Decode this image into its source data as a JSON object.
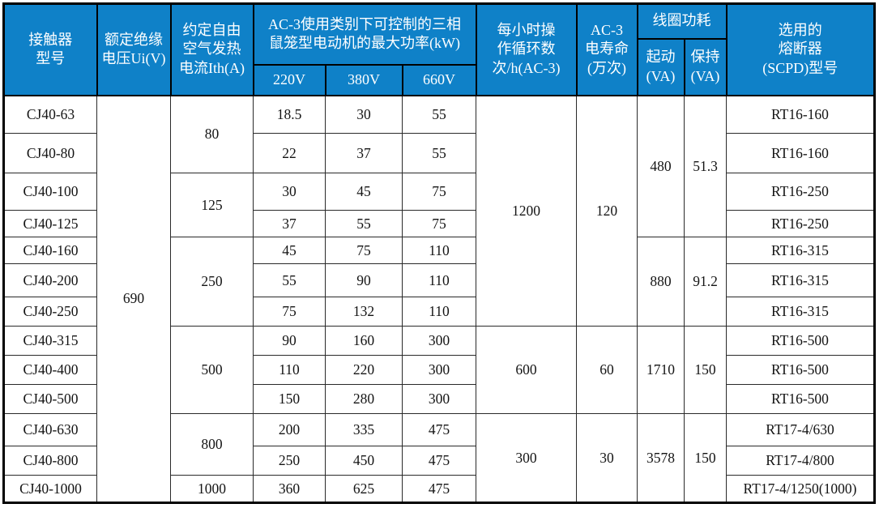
{
  "colors": {
    "header_background": "#0f81c8",
    "header_text": "#ffffff",
    "body_text": "#141414",
    "border": "#000000",
    "page_background": "#ffffff"
  },
  "header": {
    "contactor_model": "接触器\n型号",
    "rated_insulation_voltage": "额定绝缘\n电压Ui(V)",
    "conventional_free_air_thermal_current": "约定自由\n空气发热\n电流Ith(A)",
    "ac3_max_power_group": "AC-3使用类别下可控制的三相\n鼠笼型电动机的最大功率(kW)",
    "v220": "220V",
    "v380": "380V",
    "v660": "660V",
    "operating_cycles_per_hour": "每小时操\n作循环数\n次/h(AC-3)",
    "ac3_electrical_life": "AC-3\n电寿命\n(万次)",
    "coil_power_group": "线圈功耗",
    "coil_start": "起动\n(VA)",
    "coil_hold": "保持\n(VA)",
    "fuse_scpd": "选用的\n熔断器\n(SCPD)型号"
  },
  "body": {
    "ui_voltage": "690",
    "ith_groups": [
      "80",
      "125",
      "250",
      "500",
      "800",
      "1000"
    ],
    "ops_per_hour_groups": [
      "1200",
      "600",
      "300"
    ],
    "electrical_life_groups": [
      "120",
      "60",
      "30"
    ],
    "coil_start_va_groups": [
      "480",
      "880",
      "1710",
      "3578"
    ],
    "coil_hold_va_groups": [
      "51.3",
      "91.2",
      "150",
      "150"
    ],
    "rows": [
      {
        "model": "CJ40-63",
        "kw_220v": "18.5",
        "kw_380v": "30",
        "kw_660v": "55",
        "fuse": "RT16-160"
      },
      {
        "model": "CJ40-80",
        "kw_220v": "22",
        "kw_380v": "37",
        "kw_660v": "55",
        "fuse": "RT16-160"
      },
      {
        "model": "CJ40-100",
        "kw_220v": "30",
        "kw_380v": "45",
        "kw_660v": "75",
        "fuse": "RT16-250"
      },
      {
        "model": "CJ40-125",
        "kw_220v": "37",
        "kw_380v": "55",
        "kw_660v": "75",
        "fuse": "RT16-250"
      },
      {
        "model": "CJ40-160",
        "kw_220v": "45",
        "kw_380v": "75",
        "kw_660v": "110",
        "fuse": "RT16-315"
      },
      {
        "model": "CJ40-200",
        "kw_220v": "55",
        "kw_380v": "90",
        "kw_660v": "110",
        "fuse": "RT16-315"
      },
      {
        "model": "CJ40-250",
        "kw_220v": "75",
        "kw_380v": "132",
        "kw_660v": "110",
        "fuse": "RT16-315"
      },
      {
        "model": "CJ40-315",
        "kw_220v": "90",
        "kw_380v": "160",
        "kw_660v": "300",
        "fuse": "RT16-500"
      },
      {
        "model": "CJ40-400",
        "kw_220v": "110",
        "kw_380v": "220",
        "kw_660v": "300",
        "fuse": "RT16-500"
      },
      {
        "model": "CJ40-500",
        "kw_220v": "150",
        "kw_380v": "280",
        "kw_660v": "300",
        "fuse": "RT16-500"
      },
      {
        "model": "CJ40-630",
        "kw_220v": "200",
        "kw_380v": "335",
        "kw_660v": "475",
        "fuse": "RT17-4/630"
      },
      {
        "model": "CJ40-800",
        "kw_220v": "250",
        "kw_380v": "450",
        "kw_660v": "475",
        "fuse": "RT17-4/800"
      },
      {
        "model": "CJ40-1000",
        "kw_220v": "360",
        "kw_380v": "625",
        "kw_660v": "475",
        "fuse": "RT17-4/1250(1000)"
      }
    ]
  }
}
